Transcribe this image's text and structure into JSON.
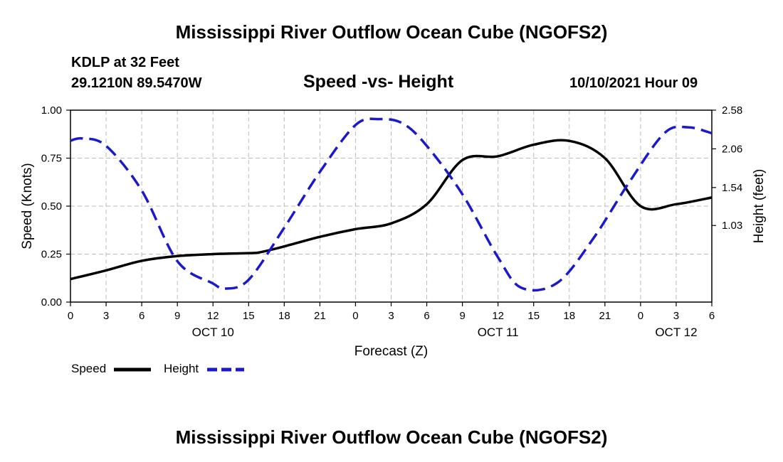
{
  "header": {
    "title": "Mississippi River Outflow Ocean Cube (NGOFS2)",
    "station": "KDLP at 32 Feet",
    "coords": "29.1210N  89.5470W",
    "subtitle": "Speed -vs- Height",
    "datetime": "10/10/2021 Hour 09"
  },
  "footer": {
    "title": "Mississippi River Outflow Ocean Cube (NGOFS2)"
  },
  "colors": {
    "speed": "#000000",
    "height": "#1a1acc",
    "grid": "#bbbbbb"
  },
  "chart_data": {
    "type": "line",
    "title": "Speed -vs- Height",
    "xlabel": "Forecast (Z)",
    "ylabel": "Speed (Knots)",
    "y2label": "Height (feet)",
    "xlim": [
      0,
      54
    ],
    "ylim": [
      0,
      1
    ],
    "y2lim": [
      0,
      2.58
    ],
    "x_ticks": [
      0,
      3,
      6,
      9,
      12,
      15,
      18,
      21,
      24,
      27,
      30,
      33,
      36,
      39,
      42,
      45,
      48,
      51,
      54
    ],
    "x_tick_labels": [
      "0",
      "3",
      "6",
      "9",
      "12",
      "15",
      "18",
      "21",
      "0",
      "3",
      "6",
      "9",
      "12",
      "15",
      "18",
      "21",
      "0",
      "3",
      "6"
    ],
    "day_labels": [
      {
        "x": 12,
        "label": "OCT 10"
      },
      {
        "x": 36,
        "label": "OCT 11"
      },
      {
        "x": 51,
        "label": "OCT 12"
      }
    ],
    "y_ticks": [
      0,
      0.25,
      0.5,
      0.75,
      1.0
    ],
    "y_tick_labels": [
      "0.00",
      "0.25",
      "0.50",
      "0.75",
      "1.00"
    ],
    "y2_ticks": [
      1.03,
      1.54,
      2.06,
      2.58
    ],
    "y2_tick_labels": [
      "1.03",
      "1.54",
      "2.06",
      "2.58"
    ],
    "grid": true,
    "legend": [
      {
        "name": "Speed",
        "style": "solid"
      },
      {
        "name": "Height",
        "style": "dashed"
      }
    ],
    "series": [
      {
        "name": "Speed",
        "axis": "left",
        "style": "solid",
        "x": [
          0,
          3,
          6,
          9,
          12,
          15,
          16,
          18,
          21,
          24,
          27,
          30,
          33,
          36,
          39,
          42,
          45,
          48,
          51,
          54
        ],
        "values": [
          0.12,
          0.165,
          0.215,
          0.24,
          0.25,
          0.255,
          0.26,
          0.29,
          0.34,
          0.38,
          0.41,
          0.51,
          0.74,
          0.76,
          0.82,
          0.84,
          0.75,
          0.5,
          0.51,
          0.545
        ]
      },
      {
        "name": "Height",
        "axis": "right",
        "style": "dashed",
        "x": [
          0,
          1,
          3,
          6,
          9,
          12,
          13,
          15,
          18,
          21,
          24,
          26,
          28,
          30,
          33,
          36,
          38,
          41,
          44,
          47,
          50,
          52,
          54
        ],
        "values": [
          2.17,
          2.2,
          2.1,
          1.5,
          0.55,
          0.25,
          0.18,
          0.3,
          1.0,
          1.75,
          2.38,
          2.46,
          2.4,
          2.1,
          1.45,
          0.6,
          0.19,
          0.26,
          0.85,
          1.6,
          2.27,
          2.35,
          2.27
        ]
      }
    ]
  }
}
